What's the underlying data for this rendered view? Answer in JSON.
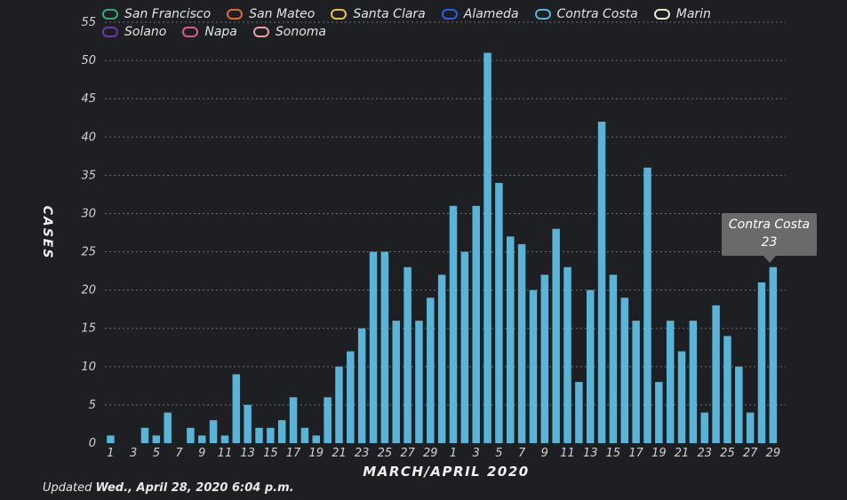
{
  "legend": [
    {
      "label": "San Francisco",
      "color": "#3aa87a"
    },
    {
      "label": "San Mateo",
      "color": "#e0683f"
    },
    {
      "label": "Santa Clara",
      "color": "#e8c04a"
    },
    {
      "label": "Alameda",
      "color": "#2c5ee8"
    },
    {
      "label": "Contra Costa",
      "color": "#5ab4d8"
    },
    {
      "label": "Marin",
      "color": "#e8ecd0"
    },
    {
      "label": "Solano",
      "color": "#6a3aa8"
    },
    {
      "label": "Napa",
      "color": "#e05a84"
    },
    {
      "label": "Sonoma",
      "color": "#e8a0a0"
    }
  ],
  "ylabel": "CASES",
  "xlabel": "MARCH/APRIL 2020",
  "updated_prefix": "Updated ",
  "updated_date": "Wed., April 28, 2020 6:04 p.m.",
  "tooltip": {
    "series": "Contra Costa",
    "value": "23"
  },
  "chart_data": {
    "type": "bar",
    "series_name": "Contra Costa",
    "color": "#5ab4d8",
    "categories": [
      "Mar 1",
      "Mar 2",
      "Mar 3",
      "Mar 4",
      "Mar 5",
      "Mar 6",
      "Mar 7",
      "Mar 8",
      "Mar 9",
      "Mar 10",
      "Mar 11",
      "Mar 12",
      "Mar 13",
      "Mar 14",
      "Mar 15",
      "Mar 16",
      "Mar 17",
      "Mar 18",
      "Mar 19",
      "Mar 20",
      "Mar 21",
      "Mar 22",
      "Mar 23",
      "Mar 24",
      "Mar 25",
      "Mar 26",
      "Mar 27",
      "Mar 28",
      "Mar 29",
      "Mar 30",
      "Mar 31",
      "Apr 1",
      "Apr 2",
      "Apr 3",
      "Apr 4",
      "Apr 5",
      "Apr 6",
      "Apr 7",
      "Apr 8",
      "Apr 9",
      "Apr 10",
      "Apr 11",
      "Apr 12",
      "Apr 13",
      "Apr 14",
      "Apr 15",
      "Apr 16",
      "Apr 17",
      "Apr 18",
      "Apr 19",
      "Apr 20",
      "Apr 21",
      "Apr 22",
      "Apr 23",
      "Apr 24",
      "Apr 25",
      "Apr 26",
      "Apr 27",
      "Apr 28"
    ],
    "values": [
      1,
      0,
      0,
      2,
      1,
      4,
      0,
      2,
      1,
      3,
      1,
      9,
      5,
      2,
      2,
      3,
      6,
      2,
      1,
      6,
      10,
      12,
      15,
      25,
      25,
      16,
      23,
      16,
      19,
      22,
      31,
      25,
      31,
      51,
      34,
      27,
      26,
      20,
      22,
      28,
      23,
      8,
      20,
      42,
      22,
      19,
      16,
      36,
      8,
      16,
      12,
      16,
      4,
      18,
      14,
      10,
      4,
      21,
      23
    ],
    "xtick_labels": [
      "1",
      "3",
      "5",
      "7",
      "9",
      "11",
      "13",
      "15",
      "17",
      "19",
      "21",
      "23",
      "25",
      "27",
      "29",
      "1",
      "3",
      "5",
      "7",
      "9",
      "11",
      "13",
      "15",
      "17",
      "19",
      "21",
      "23",
      "25",
      "27",
      "29"
    ],
    "ylim": [
      0,
      55
    ],
    "yticks": [
      0,
      5,
      10,
      15,
      20,
      25,
      30,
      35,
      40,
      45,
      50,
      55
    ],
    "grid": true
  }
}
